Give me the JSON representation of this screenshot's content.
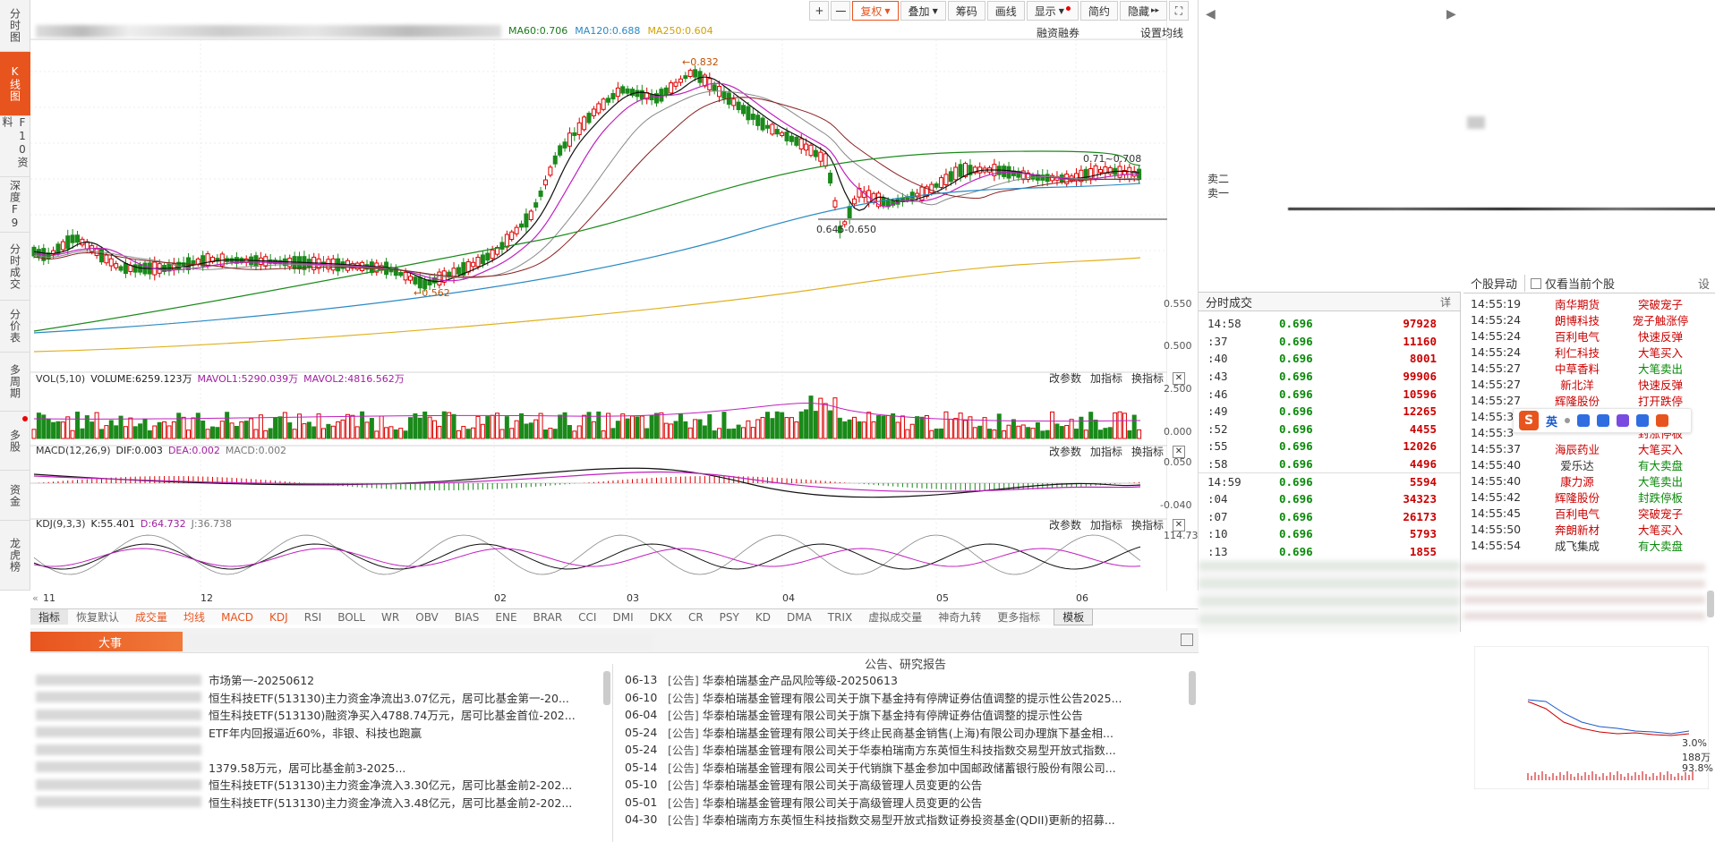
{
  "left_nav": [
    {
      "label": "分时图",
      "active": false
    },
    {
      "label": "K线图",
      "active": true
    },
    {
      "label": "F10资料",
      "active": false
    },
    {
      "label": "深度F9",
      "active": false
    },
    {
      "label": "分时成交",
      "active": false
    },
    {
      "label": "分价表",
      "active": false
    },
    {
      "label": "多周期",
      "active": false
    },
    {
      "label": "多股",
      "active": false
    },
    {
      "label": "资金",
      "active": false
    },
    {
      "label": "龙虎榜",
      "active": false
    }
  ],
  "toolbar": {
    "plus": "+",
    "minus": "一",
    "fuquan": "复权",
    "diejia": "叠加",
    "choumа": "筹码",
    "huaxian": "画线",
    "xianshi": "显示",
    "jianyue": "简约",
    "yincang": "隐藏",
    "fullscreen": "⛶"
  },
  "ma_bar": {
    "ma60": "MA60:0.706",
    "ma120": "MA120:0.688",
    "ma250": "MA250:0.604",
    "rzrq": "融资融券",
    "set_ma": "设置均线"
  },
  "price_annot": {
    "high": "0.832",
    "low_left": "0.562",
    "range": "0.645-0.650",
    "right_vals": "0.71~0.708"
  },
  "price_axis": [
    "0.550",
    "0.500"
  ],
  "vol_panel": {
    "name": "VOL(5,10)",
    "volume": "VOLUME:6259.123万",
    "mavol1": "MAVOL1:5290.039万",
    "mavol2": "MAVOL2:4816.562万",
    "axis_top": "2.500",
    "axis_bottom": "0.000"
  },
  "macd_panel": {
    "name": "MACD(12,26,9)",
    "dif": "DIF:0.003",
    "dea": "DEA:0.002",
    "macd": "MACD:0.002",
    "axis_top": "0.050",
    "axis_bottom": "-0.040"
  },
  "kdj_panel": {
    "name": "KDJ(9,3,3)",
    "k": "K:55.401",
    "d": "D:64.732",
    "j": "J:36.738",
    "axis_top": "114.730"
  },
  "panel_tools": {
    "params": "改参数",
    "add": "加指标",
    "swap": "换指标",
    "close": "✕"
  },
  "x_axis": [
    "11",
    "12",
    "02",
    "03",
    "04",
    "05",
    "06"
  ],
  "bottom_tabs": [
    "指标",
    "恢复默认",
    "成交量",
    "均线",
    "MACD",
    "KDJ",
    "RSI",
    "BOLL",
    "WR",
    "OBV",
    "BIAS",
    "ENE",
    "BRAR",
    "CCI",
    "DMI",
    "DKX",
    "CR",
    "PSY",
    "KD",
    "DMA",
    "TRIX",
    "虚拟成交量",
    "神奇九转",
    "更多指标",
    "模板"
  ],
  "news": {
    "tab": "大事",
    "announce_title": "公告、研究报告",
    "left": [
      "市场第一-20250612",
      "恒生科技ETF(513130)主力资金净流出3.07亿元，居可比基金第一-20...",
      "恒生科技ETF(513130)融资净买入4788.74万元，居可比基金首位-202...",
      "ETF年内回报逼近60%，非银、科技也跑赢",
      "",
      "1379.58万元，居可比基金前3-2025...",
      "恒生科技ETF(513130)主力资金净流入3.30亿元，居可比基金前2-202...",
      "恒生科技ETF(513130)主力资金净流入3.48亿元，居可比基金前2-202..."
    ],
    "right": [
      {
        "date": "06-13",
        "tag": "[公告]",
        "text": "华泰柏瑞基金产品风险等级-20250613"
      },
      {
        "date": "06-10",
        "tag": "[公告]",
        "text": "华泰柏瑞基金管理有限公司关于旗下基金持有停牌证券估值调整的提示性公告2025..."
      },
      {
        "date": "06-04",
        "tag": "[公告]",
        "text": "华泰柏瑞基金管理有限公司关于旗下基金持有停牌证券估值调整的提示性公告"
      },
      {
        "date": "05-24",
        "tag": "[公告]",
        "text": "华泰柏瑞基金管理有限公司关于终止民商基金销售(上海)有限公司办理旗下基金相..."
      },
      {
        "date": "05-24",
        "tag": "[公告]",
        "text": "华泰柏瑞基金管理有限公司关于华泰柏瑞南方东英恒生科技指数交易型开放式指数..."
      },
      {
        "date": "05-14",
        "tag": "[公告]",
        "text": "华泰柏瑞基金管理有限公司关于代销旗下基金参加中国邮政储蓄银行股份有限公司..."
      },
      {
        "date": "05-10",
        "tag": "[公告]",
        "text": "华泰柏瑞基金管理有限公司关于高级管理人员变更的公告"
      },
      {
        "date": "05-01",
        "tag": "[公告]",
        "text": "华泰柏瑞基金管理有限公司关于高级管理人员变更的公告"
      },
      {
        "date": "04-30",
        "tag": "[公告]",
        "text": "华泰柏瑞南方东英恒生科技指数交易型开放式指数证券投资基金(QDII)更新的招募..."
      }
    ]
  },
  "order_book": {
    "sell2": "卖二",
    "sell1": "卖一"
  },
  "ticks": {
    "title": "分时成交",
    "detail": "详",
    "rows": [
      {
        "t": "14:58",
        "p": "0.696",
        "v": "97928",
        "up": true,
        "grp": false
      },
      {
        "t": ":37",
        "p": "0.696",
        "v": "11160",
        "up": false,
        "grp": false
      },
      {
        "t": ":40",
        "p": "0.696",
        "v": "8001",
        "up": false,
        "grp": false
      },
      {
        "t": ":43",
        "p": "0.696",
        "v": "99906",
        "up": false,
        "grp": false
      },
      {
        "t": ":46",
        "p": "0.696",
        "v": "10596",
        "up": false,
        "grp": false
      },
      {
        "t": ":49",
        "p": "0.696",
        "v": "12265",
        "up": false,
        "grp": false
      },
      {
        "t": ":52",
        "p": "0.696",
        "v": "4455",
        "up": false,
        "grp": false
      },
      {
        "t": ":55",
        "p": "0.696",
        "v": "12026",
        "up": false,
        "grp": false
      },
      {
        "t": ":58",
        "p": "0.696",
        "v": "4496",
        "up": false,
        "grp": false
      },
      {
        "t": "14:59",
        "p": "0.696",
        "v": "5594",
        "up": false,
        "grp": true
      },
      {
        "t": ":04",
        "p": "0.696",
        "v": "34323",
        "up": false,
        "grp": false
      },
      {
        "t": ":07",
        "p": "0.696",
        "v": "26173",
        "up": false,
        "grp": false
      },
      {
        "t": ":10",
        "p": "0.696",
        "v": "5793",
        "up": false,
        "grp": false
      },
      {
        "t": ":13",
        "p": "0.696",
        "v": "1855",
        "up": false,
        "grp": false
      }
    ]
  },
  "anomaly": {
    "tab": "个股异动",
    "only_current": "仅看当前个股",
    "settings": "设",
    "rows": [
      {
        "t": "14:55:19",
        "n": "南华期货",
        "e": "突破宠子",
        "g": false,
        "k": false
      },
      {
        "t": "14:55:24",
        "n": "朗博科技",
        "e": "宠子触涨停",
        "g": false,
        "k": false
      },
      {
        "t": "14:55:24",
        "n": "百利电气",
        "e": "快速反弹",
        "g": false,
        "k": false
      },
      {
        "t": "14:55:24",
        "n": "利仁科技",
        "e": "大笔买入",
        "g": false,
        "k": false
      },
      {
        "t": "14:55:27",
        "n": "中草香料",
        "e": "大笔卖出",
        "g": true,
        "k": false
      },
      {
        "t": "14:55:27",
        "n": "新北洋",
        "e": "快速反弹",
        "g": false,
        "k": false
      },
      {
        "t": "14:55:27",
        "n": "辉隆股份",
        "e": "打开跌停",
        "g": false,
        "k": false
      },
      {
        "t": "14:55:3",
        "n": "",
        "e": "",
        "g": false,
        "k": false
      },
      {
        "t": "14:55:3",
        "n": "",
        "e": "封涨停板",
        "g": false,
        "k": false
      },
      {
        "t": "14:55:37",
        "n": "海辰药业",
        "e": "大笔买入",
        "g": false,
        "k": false
      },
      {
        "t": "14:55:40",
        "n": "爱乐达",
        "e": "有大卖盘",
        "g": true,
        "k": true
      },
      {
        "t": "14:55:40",
        "n": "康力源",
        "e": "大笔卖出",
        "g": true,
        "k": false
      },
      {
        "t": "14:55:42",
        "n": "辉隆股份",
        "e": "封跌停板",
        "g": true,
        "k": false
      },
      {
        "t": "14:55:45",
        "n": "百利电气",
        "e": "突破宠子",
        "g": false,
        "k": false
      },
      {
        "t": "14:55:50",
        "n": "奔朗新材",
        "e": "大笔买入",
        "g": false,
        "k": false
      },
      {
        "t": "14:55:54",
        "n": "成飞集成",
        "e": "有大卖盘",
        "g": true,
        "k": true
      }
    ]
  },
  "ime": {
    "logo": "S",
    "lang": "英"
  },
  "mini": {
    "pct": "3.0%",
    "amount": "188万",
    "pct2": "93.8%"
  },
  "colors": {
    "accent": "#e8541e",
    "up": "#c00000",
    "down": "#0a8a0a"
  }
}
